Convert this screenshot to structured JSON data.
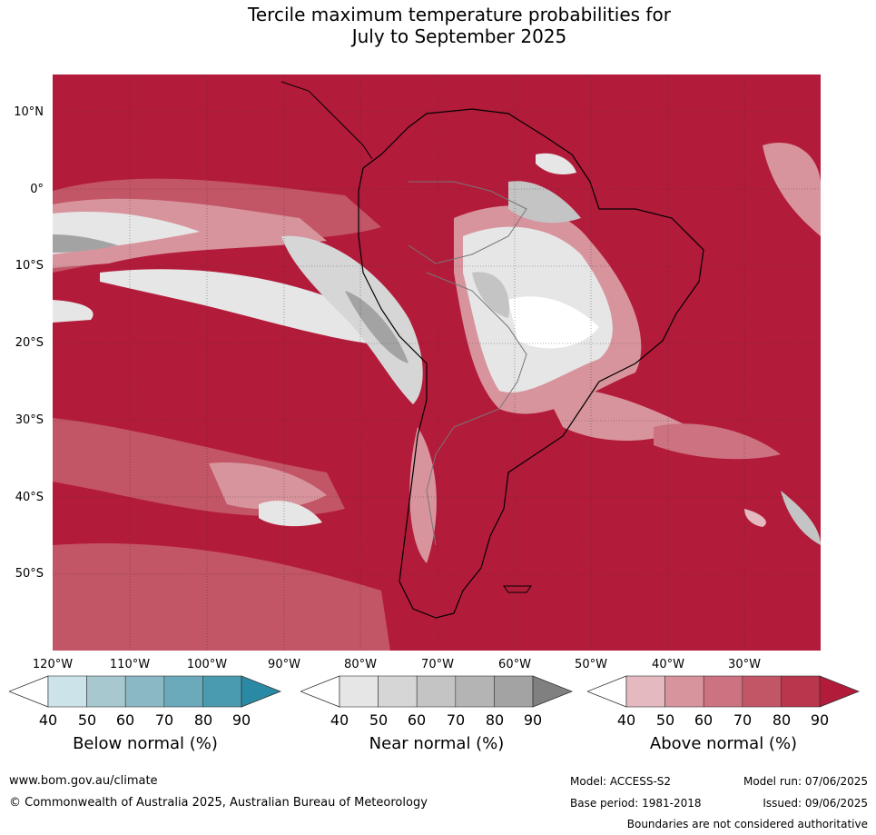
{
  "title_line1": "Tercile maximum temperature probabilities for",
  "title_line2": "July to September 2025",
  "map": {
    "lat_labels": [
      "10°N",
      "0°",
      "10°S",
      "20°S",
      "30°S",
      "40°S",
      "50°S"
    ],
    "lon_labels": [
      "120°W",
      "110°W",
      "100°W",
      "90°W",
      "80°W",
      "70°W",
      "60°W",
      "50°W",
      "40°W",
      "30°W"
    ],
    "dominant_color": "#b31b3a"
  },
  "colorbars": [
    {
      "title": "Below normal (%)",
      "ticks": [
        "40",
        "50",
        "60",
        "70",
        "80",
        "90"
      ],
      "colors": [
        "#ffffff",
        "#cde3ea",
        "#a8c8d0",
        "#8ab8c5",
        "#6aaabb",
        "#4a9bb0",
        "#2a8aa5"
      ]
    },
    {
      "title": "Near normal (%)",
      "ticks": [
        "40",
        "50",
        "60",
        "70",
        "80",
        "90"
      ],
      "colors": [
        "#ffffff",
        "#e6e6e6",
        "#d6d6d6",
        "#c4c4c4",
        "#b4b4b4",
        "#a3a3a3",
        "#808080"
      ]
    },
    {
      "title": "Above normal (%)",
      "ticks": [
        "40",
        "50",
        "60",
        "70",
        "80",
        "90"
      ],
      "colors": [
        "#ffffff",
        "#e4b9bf",
        "#d8949d",
        "#cc7280",
        "#c25566",
        "#b9364d",
        "#b31b3a"
      ]
    }
  ],
  "footer": {
    "url": "www.bom.gov.au/climate",
    "copyright": "© Commonwealth of Australia 2025, Australian Bureau of Meteorology",
    "model": "Model: ACCESS-S2",
    "model_run": "Model run: 07/06/2025",
    "base_period": "Base period: 1981-2018",
    "issued": "Issued: 09/06/2025",
    "disclaimer": "Boundaries are not considered authoritative"
  }
}
